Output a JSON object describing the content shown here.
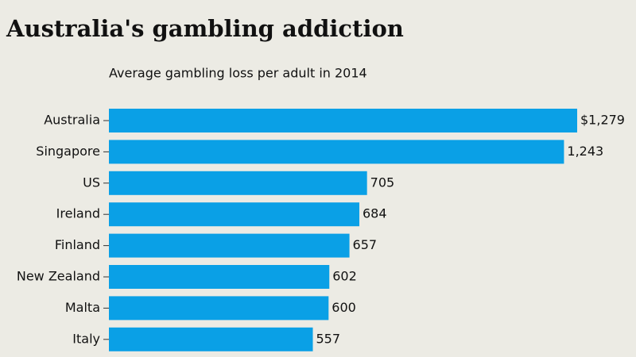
{
  "chart_data": {
    "type": "bar",
    "orientation": "horizontal",
    "title": "Australia's gambling addiction",
    "subtitle": "Average gambling loss per adult in 2014",
    "categories": [
      "Australia",
      "Singapore",
      "US",
      "Ireland",
      "Finland",
      "New Zealand",
      "Malta",
      "Italy"
    ],
    "values": [
      1279,
      1243,
      705,
      684,
      657,
      602,
      600,
      557
    ],
    "value_labels": [
      "$1,279",
      "1,243",
      "705",
      "684",
      "657",
      "602",
      "600",
      "557"
    ],
    "color": "#0aa0e6"
  }
}
